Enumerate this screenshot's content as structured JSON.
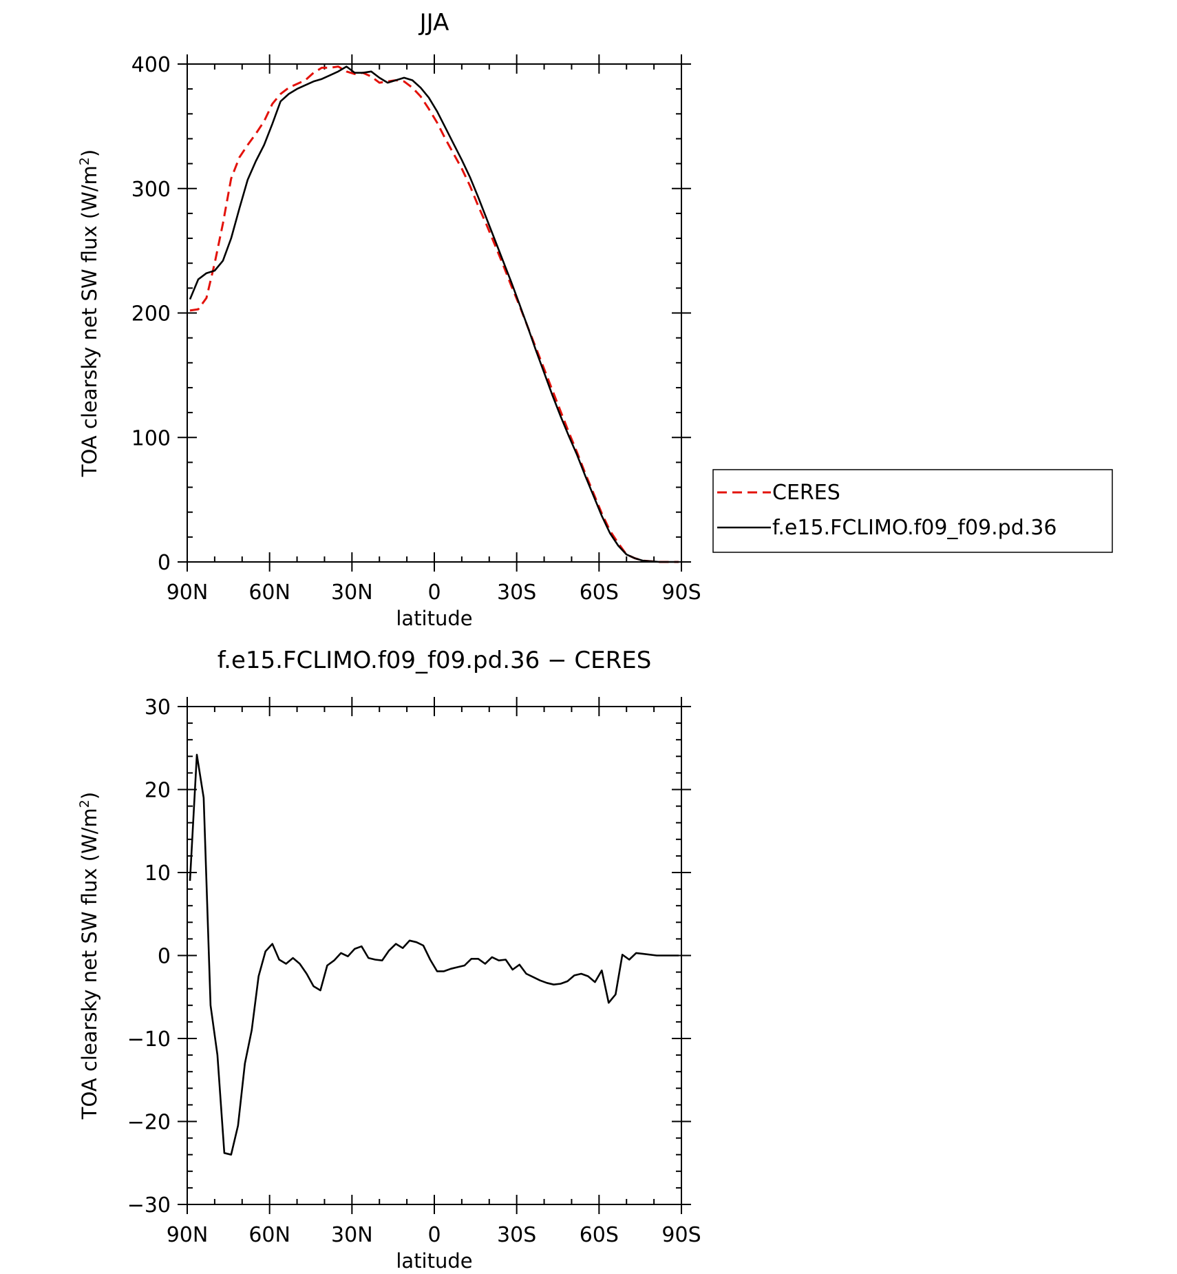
{
  "chart_data": [
    {
      "type": "line",
      "title": "JJA",
      "xlabel": "latitude",
      "ylabel": "TOA clearsky net SW flux (W/m²)",
      "x_ticks": [
        "90N",
        "60N",
        "30N",
        "0",
        "30S",
        "60S",
        "90S"
      ],
      "y_ticks": [
        "0",
        "100",
        "200",
        "300",
        "400"
      ],
      "xlim": [
        90,
        -90
      ],
      "ylim": [
        0,
        400
      ],
      "legend": {
        "position": "right",
        "entries": [
          "CERES",
          "f.e15.FCLIMO.f09_f09.pd.36"
        ]
      },
      "series": [
        {
          "name": "CERES",
          "color": "#e3120b",
          "style": "dashed",
          "points": [
            [
              89,
              202
            ],
            [
              86,
              203
            ],
            [
              83,
              212
            ],
            [
              80,
              240
            ],
            [
              77,
              272
            ],
            [
              74,
              308
            ],
            [
              71,
              325
            ],
            [
              68,
              335
            ],
            [
              65,
              344
            ],
            [
              62,
              354
            ],
            [
              59,
              368
            ],
            [
              56,
              376
            ],
            [
              53,
              381
            ],
            [
              50,
              384
            ],
            [
              47,
              387
            ],
            [
              44,
              393
            ],
            [
              41,
              397
            ],
            [
              38,
              397
            ],
            [
              35,
              398
            ],
            [
              32,
              394
            ],
            [
              29,
              392
            ],
            [
              26,
              393
            ],
            [
              23,
              390
            ],
            [
              20,
              385
            ],
            [
              17,
              386
            ],
            [
              14,
              387
            ],
            [
              11,
              386
            ],
            [
              8,
              381
            ],
            [
              5,
              374
            ],
            [
              2,
              364
            ],
            [
              -1,
              353
            ],
            [
              -4,
              340
            ],
            [
              -7,
              328
            ],
            [
              -10,
              316
            ],
            [
              -13,
              302
            ],
            [
              -16,
              286
            ],
            [
              -19,
              271
            ],
            [
              -22,
              255
            ],
            [
              -25,
              239
            ],
            [
              -28,
              222
            ],
            [
              -31,
              206
            ],
            [
              -34,
              189
            ],
            [
              -37,
              172
            ],
            [
              -40,
              155
            ],
            [
              -43,
              138
            ],
            [
              -46,
              121
            ],
            [
              -49,
              104
            ],
            [
              -52,
              88
            ],
            [
              -55,
              71
            ],
            [
              -58,
              55
            ],
            [
              -61,
              39
            ],
            [
              -64,
              25
            ],
            [
              -67,
              15
            ],
            [
              -70,
              6
            ],
            [
              -73,
              3
            ],
            [
              -76,
              1
            ],
            [
              -79,
              0.5
            ],
            [
              -82,
              0
            ],
            [
              -85,
              0
            ],
            [
              -89,
              0
            ]
          ]
        },
        {
          "name": "f.e15.FCLIMO.f09_f09.pd.36",
          "color": "#000000",
          "style": "solid",
          "points": [
            [
              89,
              211
            ],
            [
              86,
              227
            ],
            [
              83,
              232
            ],
            [
              80,
              234
            ],
            [
              77,
              242
            ],
            [
              74,
              260
            ],
            [
              71,
              284
            ],
            [
              68,
              307
            ],
            [
              65,
              322
            ],
            [
              62,
              335
            ],
            [
              59,
              352
            ],
            [
              56,
              370
            ],
            [
              53,
              376
            ],
            [
              50,
              380
            ],
            [
              47,
              383
            ],
            [
              44,
              386
            ],
            [
              41,
              388
            ],
            [
              38,
              391
            ],
            [
              35,
              394
            ],
            [
              32,
              398
            ],
            [
              29,
              393
            ],
            [
              26,
              393
            ],
            [
              23,
              394
            ],
            [
              20,
              389
            ],
            [
              17,
              385
            ],
            [
              14,
              387
            ],
            [
              11,
              389
            ],
            [
              8,
              387
            ],
            [
              5,
              381
            ],
            [
              2,
              373
            ],
            [
              -1,
              362
            ],
            [
              -4,
              349
            ],
            [
              -7,
              336
            ],
            [
              -10,
              323
            ],
            [
              -13,
              309
            ],
            [
              -16,
              293
            ],
            [
              -19,
              276
            ],
            [
              -22,
              259
            ],
            [
              -25,
              242
            ],
            [
              -28,
              225
            ],
            [
              -31,
              207
            ],
            [
              -34,
              189
            ],
            [
              -37,
              170
            ],
            [
              -40,
              152
            ],
            [
              -43,
              134
            ],
            [
              -46,
              117
            ],
            [
              -49,
              101
            ],
            [
              -52,
              86
            ],
            [
              -55,
              69
            ],
            [
              -58,
              53
            ],
            [
              -61,
              37
            ],
            [
              -64,
              23
            ],
            [
              -67,
              13
            ],
            [
              -70,
              6
            ],
            [
              -73,
              3
            ],
            [
              -76,
              1
            ],
            [
              -79,
              0.5
            ],
            [
              -82,
              0
            ],
            [
              -85,
              0
            ],
            [
              -89,
              0
            ]
          ]
        }
      ]
    },
    {
      "type": "line",
      "title": "f.e15.FCLIMO.f09_f09.pd.36 − CERES",
      "xlabel": "latitude",
      "ylabel": "TOA clearsky net SW flux (W/m²)",
      "x_ticks": [
        "90N",
        "60N",
        "30N",
        "0",
        "30S",
        "60S",
        "90S"
      ],
      "y_ticks": [
        "−30",
        "−20",
        "−10",
        "0",
        "10",
        "20",
        "30"
      ],
      "xlim": [
        90,
        -90
      ],
      "ylim": [
        -30,
        30
      ],
      "series": [
        {
          "color": "#000000",
          "style": "solid",
          "points": [
            [
              89,
              9
            ],
            [
              86.5,
              24.2
            ],
            [
              84,
              19
            ],
            [
              81.5,
              -6
            ],
            [
              79,
              -12
            ],
            [
              76.5,
              -23.8
            ],
            [
              74,
              -24
            ],
            [
              71.5,
              -20.5
            ],
            [
              69,
              -13
            ],
            [
              66.5,
              -9
            ],
            [
              64,
              -2.5
            ],
            [
              61.5,
              0.5
            ],
            [
              59,
              1.4
            ],
            [
              56.5,
              -0.5
            ],
            [
              54,
              -1
            ],
            [
              51.5,
              -0.3
            ],
            [
              49,
              -1
            ],
            [
              46.5,
              -2.2
            ],
            [
              44,
              -3.7
            ],
            [
              41.5,
              -4.2
            ],
            [
              39,
              -1.2
            ],
            [
              36.5,
              -0.6
            ],
            [
              34,
              0.3
            ],
            [
              31.5,
              -0.1
            ],
            [
              29,
              0.8
            ],
            [
              26.5,
              1.1
            ],
            [
              24,
              -0.3
            ],
            [
              21.5,
              -0.5
            ],
            [
              19,
              -0.6
            ],
            [
              16.5,
              0.6
            ],
            [
              14,
              1.4
            ],
            [
              11.5,
              0.9
            ],
            [
              9,
              1.8
            ],
            [
              6.5,
              1.6
            ],
            [
              4,
              1.2
            ],
            [
              1.5,
              -0.5
            ],
            [
              -1,
              -1.9
            ],
            [
              -3.5,
              -1.9
            ],
            [
              -6,
              -1.6
            ],
            [
              -8.5,
              -1.4
            ],
            [
              -11,
              -1.2
            ],
            [
              -13.5,
              -0.4
            ],
            [
              -16,
              -0.4
            ],
            [
              -18.5,
              -1
            ],
            [
              -21,
              -0.2
            ],
            [
              -23.5,
              -0.6
            ],
            [
              -26,
              -0.5
            ],
            [
              -28.5,
              -1.7
            ],
            [
              -31,
              -1.1
            ],
            [
              -33.5,
              -2.2
            ],
            [
              -36,
              -2.6
            ],
            [
              -38.5,
              -3
            ],
            [
              -41,
              -3.3
            ],
            [
              -43.5,
              -3.5
            ],
            [
              -46,
              -3.4
            ],
            [
              -48.5,
              -3.1
            ],
            [
              -51,
              -2.4
            ],
            [
              -53.5,
              -2.2
            ],
            [
              -56,
              -2.5
            ],
            [
              -58.5,
              -3.2
            ],
            [
              -61,
              -1.8
            ],
            [
              -63.5,
              -5.7
            ],
            [
              -66,
              -4.7
            ],
            [
              -68.5,
              0.1
            ],
            [
              -71,
              -0.5
            ],
            [
              -73.5,
              0.3
            ],
            [
              -76,
              0.2
            ],
            [
              -81,
              0
            ],
            [
              -89,
              0
            ]
          ]
        }
      ]
    }
  ]
}
